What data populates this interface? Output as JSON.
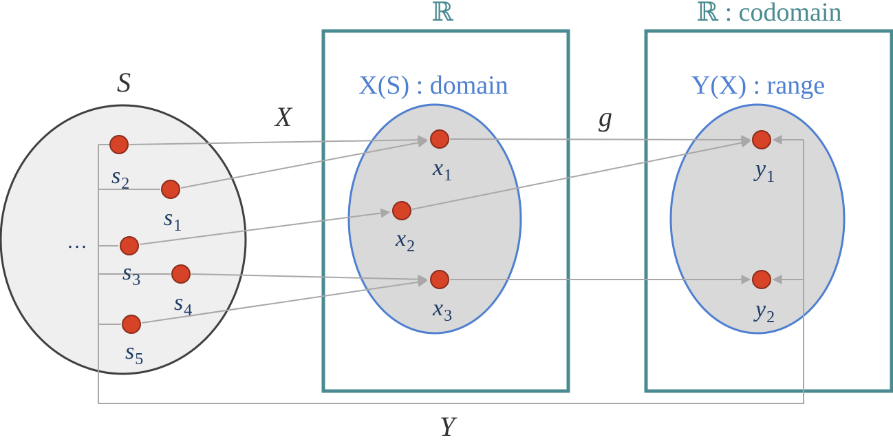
{
  "boxes": {
    "middle_title": "ℝ",
    "right_title": "ℝ : codomain"
  },
  "sets": {
    "S_label": "S",
    "domain_label": "X(S) : domain",
    "range_label": "Y(X) : range"
  },
  "maps": {
    "X_label": "X",
    "g_label": "g",
    "Y_label": "Y"
  },
  "sample_points": [
    {
      "base": "s",
      "sub": "2"
    },
    {
      "base": "s",
      "sub": "1"
    },
    {
      "base": "s",
      "sub": "3"
    },
    {
      "base": "s",
      "sub": "4"
    },
    {
      "base": "s",
      "sub": "5"
    }
  ],
  "ellipsis": "…",
  "domain_points": [
    {
      "base": "x",
      "sub": "1"
    },
    {
      "base": "x",
      "sub": "2"
    },
    {
      "base": "x",
      "sub": "3"
    }
  ],
  "range_points": [
    {
      "base": "y",
      "sub": "1"
    },
    {
      "base": "y",
      "sub": "2"
    }
  ],
  "colors": {
    "box_border": "#4a8a91",
    "ellipse_border": "#4f7fd0",
    "point": "#d64327",
    "arrow": "#a8a8a8"
  }
}
